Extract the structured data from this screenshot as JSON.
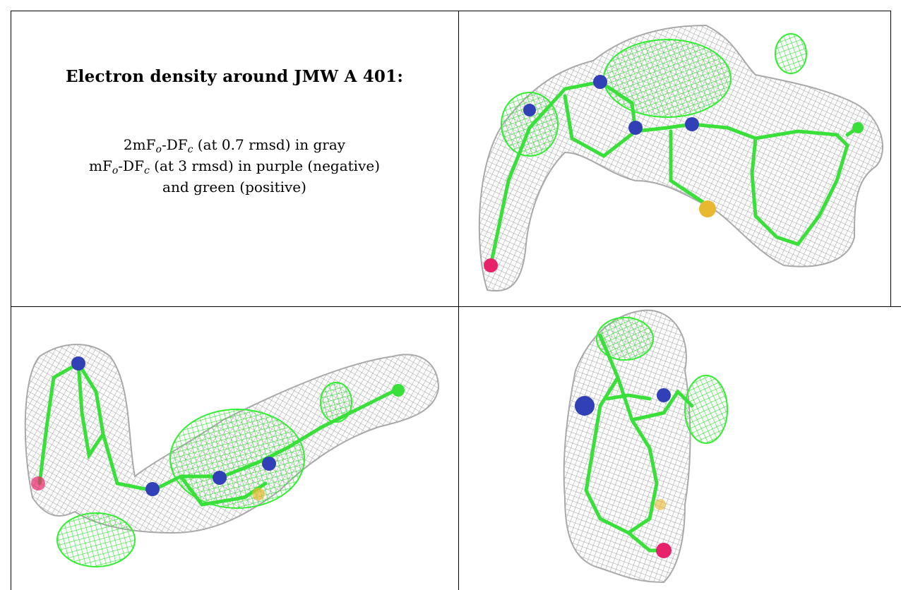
{
  "caption": {
    "title": "Electron density around JMW A 401:",
    "line1_prefix": "2mF",
    "line1_sub1": "o",
    "line1_mid": "-DF",
    "line1_sub2": "c",
    "line1_suffix": " (at 0.7 rmsd) in gray",
    "line2_prefix": "mF",
    "line2_sub1": "o",
    "line2_mid": "-DF",
    "line2_sub2": "c",
    "line2_suffix": " (at 3 rmsd) in purple (negative)",
    "line3": "and green (positive)"
  },
  "colors": {
    "mesh_gray": "#a9a9a9",
    "mesh_green": "#33ee33",
    "bond_green": "#39e039",
    "nitrogen_blue": "#3240b8",
    "sulfur_yellow": "#e8b830",
    "oxygen_red": "#e8226a"
  },
  "panels": [
    {
      "view": "top-right-view"
    },
    {
      "view": "bottom-left-view"
    },
    {
      "view": "bottom-right-view"
    }
  ]
}
